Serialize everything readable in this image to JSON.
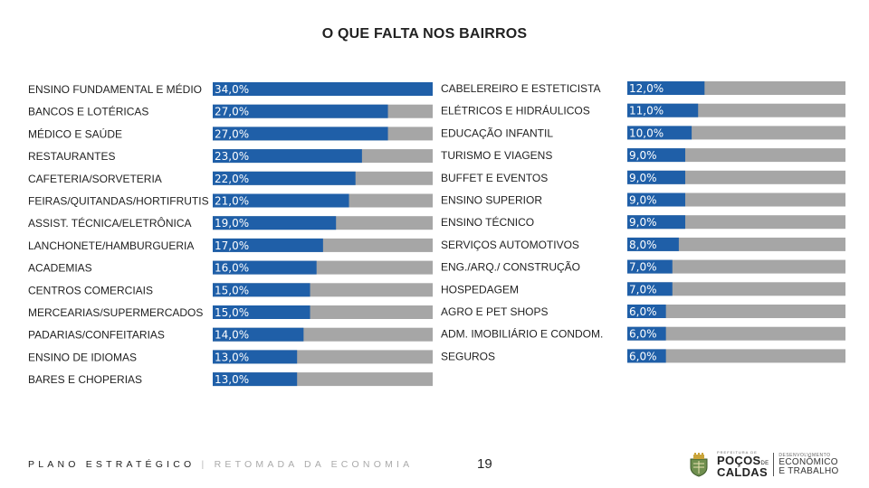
{
  "title": "O QUE FALTA NOS BAIRROS",
  "colors": {
    "bar_fill": "#1f5fa8",
    "bar_track": "#a6a6a6",
    "value_text": "#ffffff"
  },
  "chart_data": [
    {
      "type": "bar",
      "orientation": "horizontal",
      "value_format": "percent",
      "xlim": [
        0,
        100
      ],
      "categories": [
        "ENSINO FUNDAMENTAL E MÉDIO",
        "BANCOS E LOTÉRICAS",
        "MÉDICO E SAÚDE",
        "RESTAURANTES",
        "CAFETERIA/SORVETERIA",
        "FEIRAS/QUITANDAS/HORTIFRUTIS",
        "ASSIST. TÉCNICA/ELETRÔNICA",
        "LANCHONETE/HAMBURGUERIA",
        "ACADEMIAS",
        "CENTROS COMERCIAIS",
        "MERCEARIAS/SUPERMERCADOS",
        "PADARIAS/CONFEITARIAS",
        "ENSINO DE IDIOMAS",
        "BARES E CHOPERIAS"
      ],
      "values": [
        34.0,
        27.0,
        27.0,
        23.0,
        22.0,
        21.0,
        19.0,
        17.0,
        16.0,
        15.0,
        15.0,
        14.0,
        13.0,
        13.0
      ],
      "value_labels": [
        "34,0%",
        "27,0%",
        "27,0%",
        "23,0%",
        "22,0%",
        "21,0%",
        "19,0%",
        "17,0%",
        "16,0%",
        "15,0%",
        "15,0%",
        "14,0%",
        "13,0%",
        "13,0%"
      ]
    },
    {
      "type": "bar",
      "orientation": "horizontal",
      "value_format": "percent",
      "xlim": [
        0,
        100
      ],
      "categories": [
        "CABELEREIRO E ESTETICISTA",
        "ELÉTRICOS E HIDRÁULICOS",
        "EDUCAÇÃO INFANTIL",
        "TURISMO E VIAGENS",
        "BUFFET E EVENTOS",
        "ENSINO SUPERIOR",
        "ENSINO TÉCNICO",
        "SERVIÇOS AUTOMOTIVOS",
        "ENG./ARQ./ CONSTRUÇÃO",
        "HOSPEDAGEM",
        "AGRO E PET SHOPS",
        "ADM. IMOBILIÁRIO E CONDOM.",
        "SEGUROS"
      ],
      "values": [
        12.0,
        11.0,
        10.0,
        9.0,
        9.0,
        9.0,
        9.0,
        8.0,
        7.0,
        7.0,
        6.0,
        6.0,
        6.0
      ],
      "value_labels": [
        "12,0%",
        "11,0%",
        "10,0%",
        "9,0%",
        "9,0%",
        "9,0%",
        "9,0%",
        "8,0%",
        "7,0%",
        "7,0%",
        "6,0%",
        "6,0%",
        "6,0%"
      ]
    }
  ],
  "footer": {
    "plan_text": "PLANO ESTRATÉGICO",
    "separator": "|",
    "subtitle": "RETOMADA DA ECONOMIA",
    "page_number": "19",
    "logo_prefecture": "PREFEITURA DE",
    "logo_city_line1": "POÇOS",
    "logo_city_de": "DE",
    "logo_city_line2": "CALDAS",
    "logo_dept_line1": "DESENVOLVIMENTO",
    "logo_dept_line2": "ECONÔMICO",
    "logo_dept_line3": "E TRABALHO"
  }
}
